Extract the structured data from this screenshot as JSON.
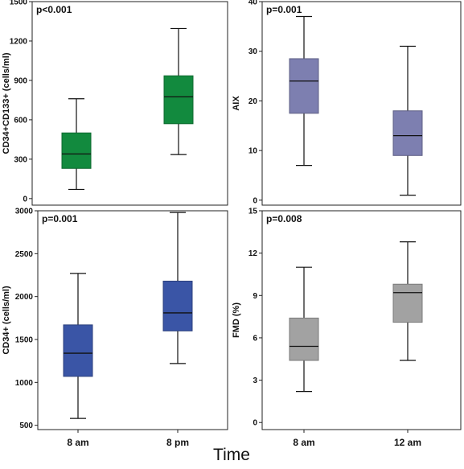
{
  "figure": {
    "xlabel": "Time"
  },
  "chart_data": [
    {
      "type": "boxplot",
      "annotation": "p<0.001",
      "ylabel": "CD34+CD133+ (cells/ml)",
      "ylim": [
        -50,
        1500
      ],
      "yticks": [
        0,
        300,
        600,
        900,
        1200,
        1500
      ],
      "color": "#128a3e",
      "categories": [
        "",
        ""
      ],
      "boxes": [
        {
          "min": 70,
          "q1": 230,
          "median": 340,
          "q3": 500,
          "max": 760
        },
        {
          "min": 335,
          "q1": 570,
          "median": 775,
          "q3": 935,
          "max": 1295
        }
      ]
    },
    {
      "type": "boxplot",
      "annotation": "p=0.001",
      "ylabel": "AIX",
      "ylim": [
        -1,
        40
      ],
      "yticks": [
        0,
        10,
        20,
        30,
        40
      ],
      "color": "#7d7fb0",
      "categories": [
        "",
        ""
      ],
      "boxes": [
        {
          "min": 7,
          "q1": 17.5,
          "median": 24,
          "q3": 28.5,
          "max": 37
        },
        {
          "min": 1,
          "q1": 9,
          "median": 13,
          "q3": 18,
          "max": 31
        }
      ]
    },
    {
      "type": "boxplot",
      "annotation": "p=0.001",
      "ylabel": "CD34+ (cells/ml)",
      "ylim": [
        450,
        3000
      ],
      "yticks": [
        500,
        1000,
        1500,
        2000,
        2500,
        3000
      ],
      "color": "#3a55a6",
      "categories": [
        "8 am",
        "8 pm"
      ],
      "boxes": [
        {
          "min": 580,
          "q1": 1070,
          "median": 1340,
          "q3": 1670,
          "max": 2270
        },
        {
          "min": 1220,
          "q1": 1600,
          "median": 1810,
          "q3": 2180,
          "max": 2980
        }
      ]
    },
    {
      "type": "boxplot",
      "annotation": "p=0.008",
      "ylabel": "FMD (%)",
      "ylim": [
        -0.5,
        15
      ],
      "yticks": [
        0,
        3,
        6,
        9,
        12,
        15
      ],
      "color": "#a2a2a2",
      "categories": [
        "8 am",
        "12 am"
      ],
      "boxes": [
        {
          "min": 2.2,
          "q1": 4.4,
          "median": 5.4,
          "q3": 7.4,
          "max": 11
        },
        {
          "min": 4.4,
          "q1": 7.1,
          "median": 9.2,
          "q3": 9.8,
          "max": 12.8
        }
      ]
    }
  ]
}
